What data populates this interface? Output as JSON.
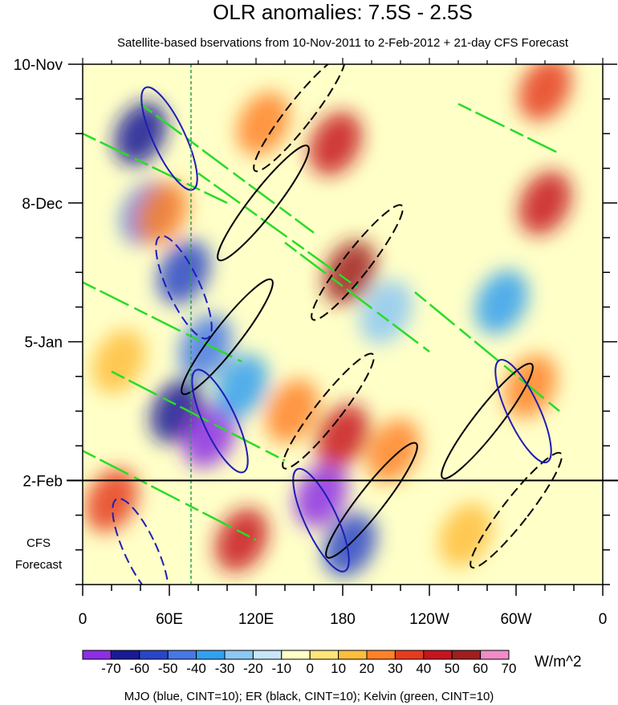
{
  "chart_data": {
    "type": "heatmap",
    "title": "OLR anomalies: 7.5S - 2.5S",
    "subtitle": "Satellite-based bservations from 10-Nov-2011 to 2-Feb-2012 + 21-day CFS Forecast",
    "x_axis": {
      "range": [
        0,
        360
      ],
      "ticks": [
        {
          "lon": 0,
          "label": "0"
        },
        {
          "lon": 60,
          "label": "60E"
        },
        {
          "lon": 120,
          "label": "120E"
        },
        {
          "lon": 180,
          "label": "180"
        },
        {
          "lon": 240,
          "label": "120W"
        },
        {
          "lon": 300,
          "label": "60W"
        },
        {
          "lon": 360,
          "label": "0"
        }
      ]
    },
    "y_axis": {
      "range_days": [
        0,
        105
      ],
      "ticks": [
        {
          "day": 0,
          "label": "10-Nov"
        },
        {
          "day": 28,
          "label": "8-Dec"
        },
        {
          "day": 56,
          "label": "5-Jan"
        },
        {
          "day": 84,
          "label": "2-Feb"
        }
      ],
      "observation_end_day": 84,
      "forecast_label_line1": "CFS",
      "forecast_label_line2": "Forecast"
    },
    "colorbar": {
      "unit": "W/m^2",
      "levels": [
        -70,
        -60,
        -50,
        -40,
        -30,
        -20,
        -10,
        0,
        10,
        20,
        30,
        40,
        50,
        60,
        70
      ],
      "labels": [
        "-70",
        "-60",
        "-50",
        "-40",
        "-30",
        "-20",
        "-10",
        "0",
        "10",
        "20",
        "30",
        "40",
        "50",
        "60",
        "70"
      ],
      "colors": [
        "#8c2ee6",
        "#1a1a96",
        "#2846c8",
        "#4678e6",
        "#32a0f0",
        "#8cc8f5",
        "#c8e6fa",
        "#ffffc8",
        "#ffe678",
        "#ffbe3c",
        "#ff8228",
        "#e63c1e",
        "#c8141e",
        "#a01e1e",
        "#f08cc8"
      ]
    },
    "field_blobs": [
      {
        "lon": 40,
        "day": 14,
        "value": -60
      },
      {
        "lon": 45,
        "day": 30,
        "value": -40
      },
      {
        "lon": 70,
        "day": 42,
        "value": -50
      },
      {
        "lon": 85,
        "day": 57,
        "value": -40
      },
      {
        "lon": 65,
        "day": 70,
        "value": -60
      },
      {
        "lon": 88,
        "day": 75,
        "value": -70
      },
      {
        "lon": 110,
        "day": 65,
        "value": -30
      },
      {
        "lon": 165,
        "day": 87,
        "value": -70
      },
      {
        "lon": 185,
        "day": 97,
        "value": -50
      },
      {
        "lon": 290,
        "day": 48,
        "value": -30
      },
      {
        "lon": 210,
        "day": 50,
        "value": -20
      },
      {
        "lon": 175,
        "day": 16,
        "value": 50
      },
      {
        "lon": 185,
        "day": 42,
        "value": 60
      },
      {
        "lon": 55,
        "day": 30,
        "value": 30
      },
      {
        "lon": 125,
        "day": 12,
        "value": 30
      },
      {
        "lon": 180,
        "day": 75,
        "value": 50
      },
      {
        "lon": 215,
        "day": 78,
        "value": 30
      },
      {
        "lon": 20,
        "day": 88,
        "value": 40
      },
      {
        "lon": 110,
        "day": 96,
        "value": 50
      },
      {
        "lon": 320,
        "day": 28,
        "value": 50
      },
      {
        "lon": 320,
        "day": 5,
        "value": 40
      },
      {
        "lon": 310,
        "day": 65,
        "value": 30
      },
      {
        "lon": 145,
        "day": 70,
        "value": 30
      },
      {
        "lon": 25,
        "day": 60,
        "value": 20
      },
      {
        "lon": 265,
        "day": 95,
        "value": 20
      }
    ],
    "series": [
      {
        "name": "MJO",
        "color": "#1e1eb4",
        "cint": 10
      },
      {
        "name": "ER",
        "color": "#000000",
        "cint": 10
      },
      {
        "name": "Kelvin",
        "color": "#28dc28",
        "cint": 10
      }
    ],
    "legend_text": "MJO (blue, CINT=10); ER (black, CINT=10); Kelvin (green, CINT=10)",
    "reference_line_lon": 75
  }
}
